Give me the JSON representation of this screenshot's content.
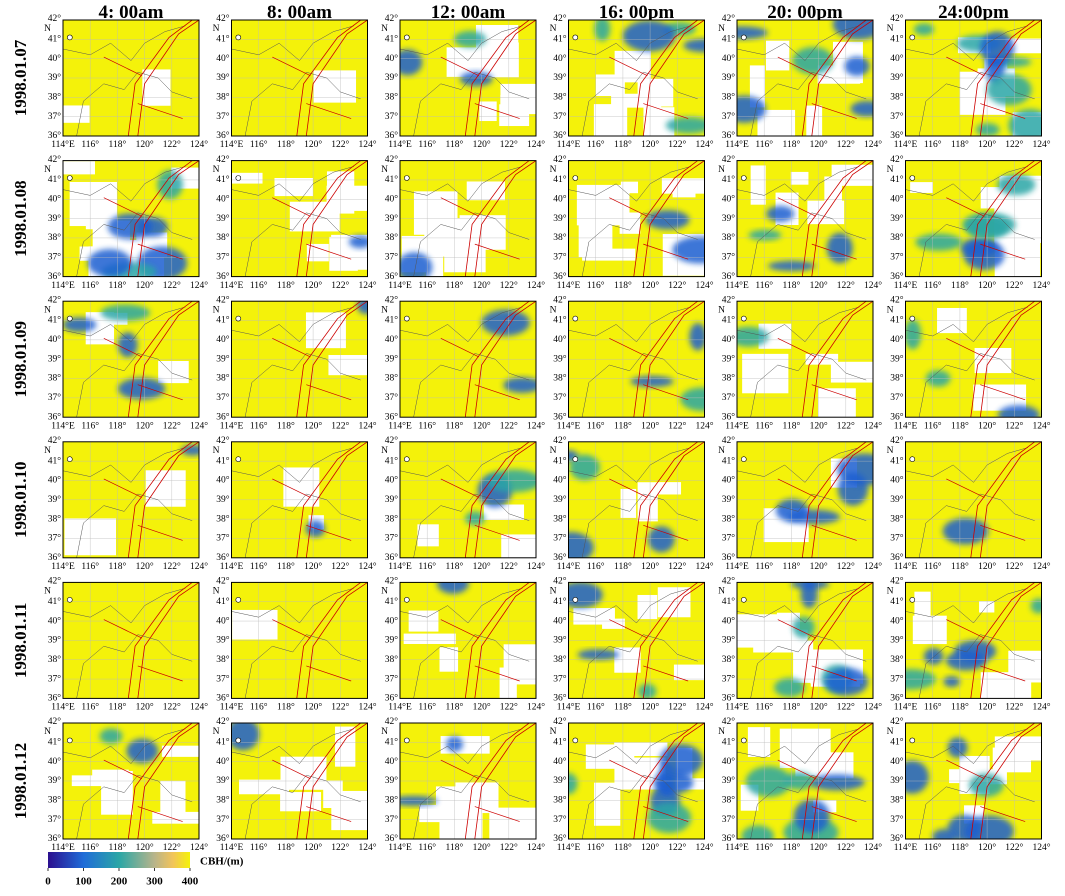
{
  "column_headers": [
    "4: 00am",
    "8: 00am",
    "12: 00am",
    "16: 00pm",
    "20: 00pm",
    "24:00pm"
  ],
  "row_labels": [
    "1998.01.07",
    "1998.01.08",
    "1998.01.09",
    "1998.01.10",
    "1998.01.11",
    "1998.01.12"
  ],
  "map_axes": {
    "lat_labels": [
      "42°",
      "41°",
      "40°",
      "39°",
      "38°",
      "37°",
      "36°"
    ],
    "lat_unit": "N",
    "lon_labels": [
      "114°E",
      "116°",
      "118°",
      "120°",
      "122°",
      "124°"
    ]
  },
  "colorbar": {
    "label": "CBH/(m)",
    "ticks": [
      0,
      100,
      200,
      300,
      400
    ]
  }
}
